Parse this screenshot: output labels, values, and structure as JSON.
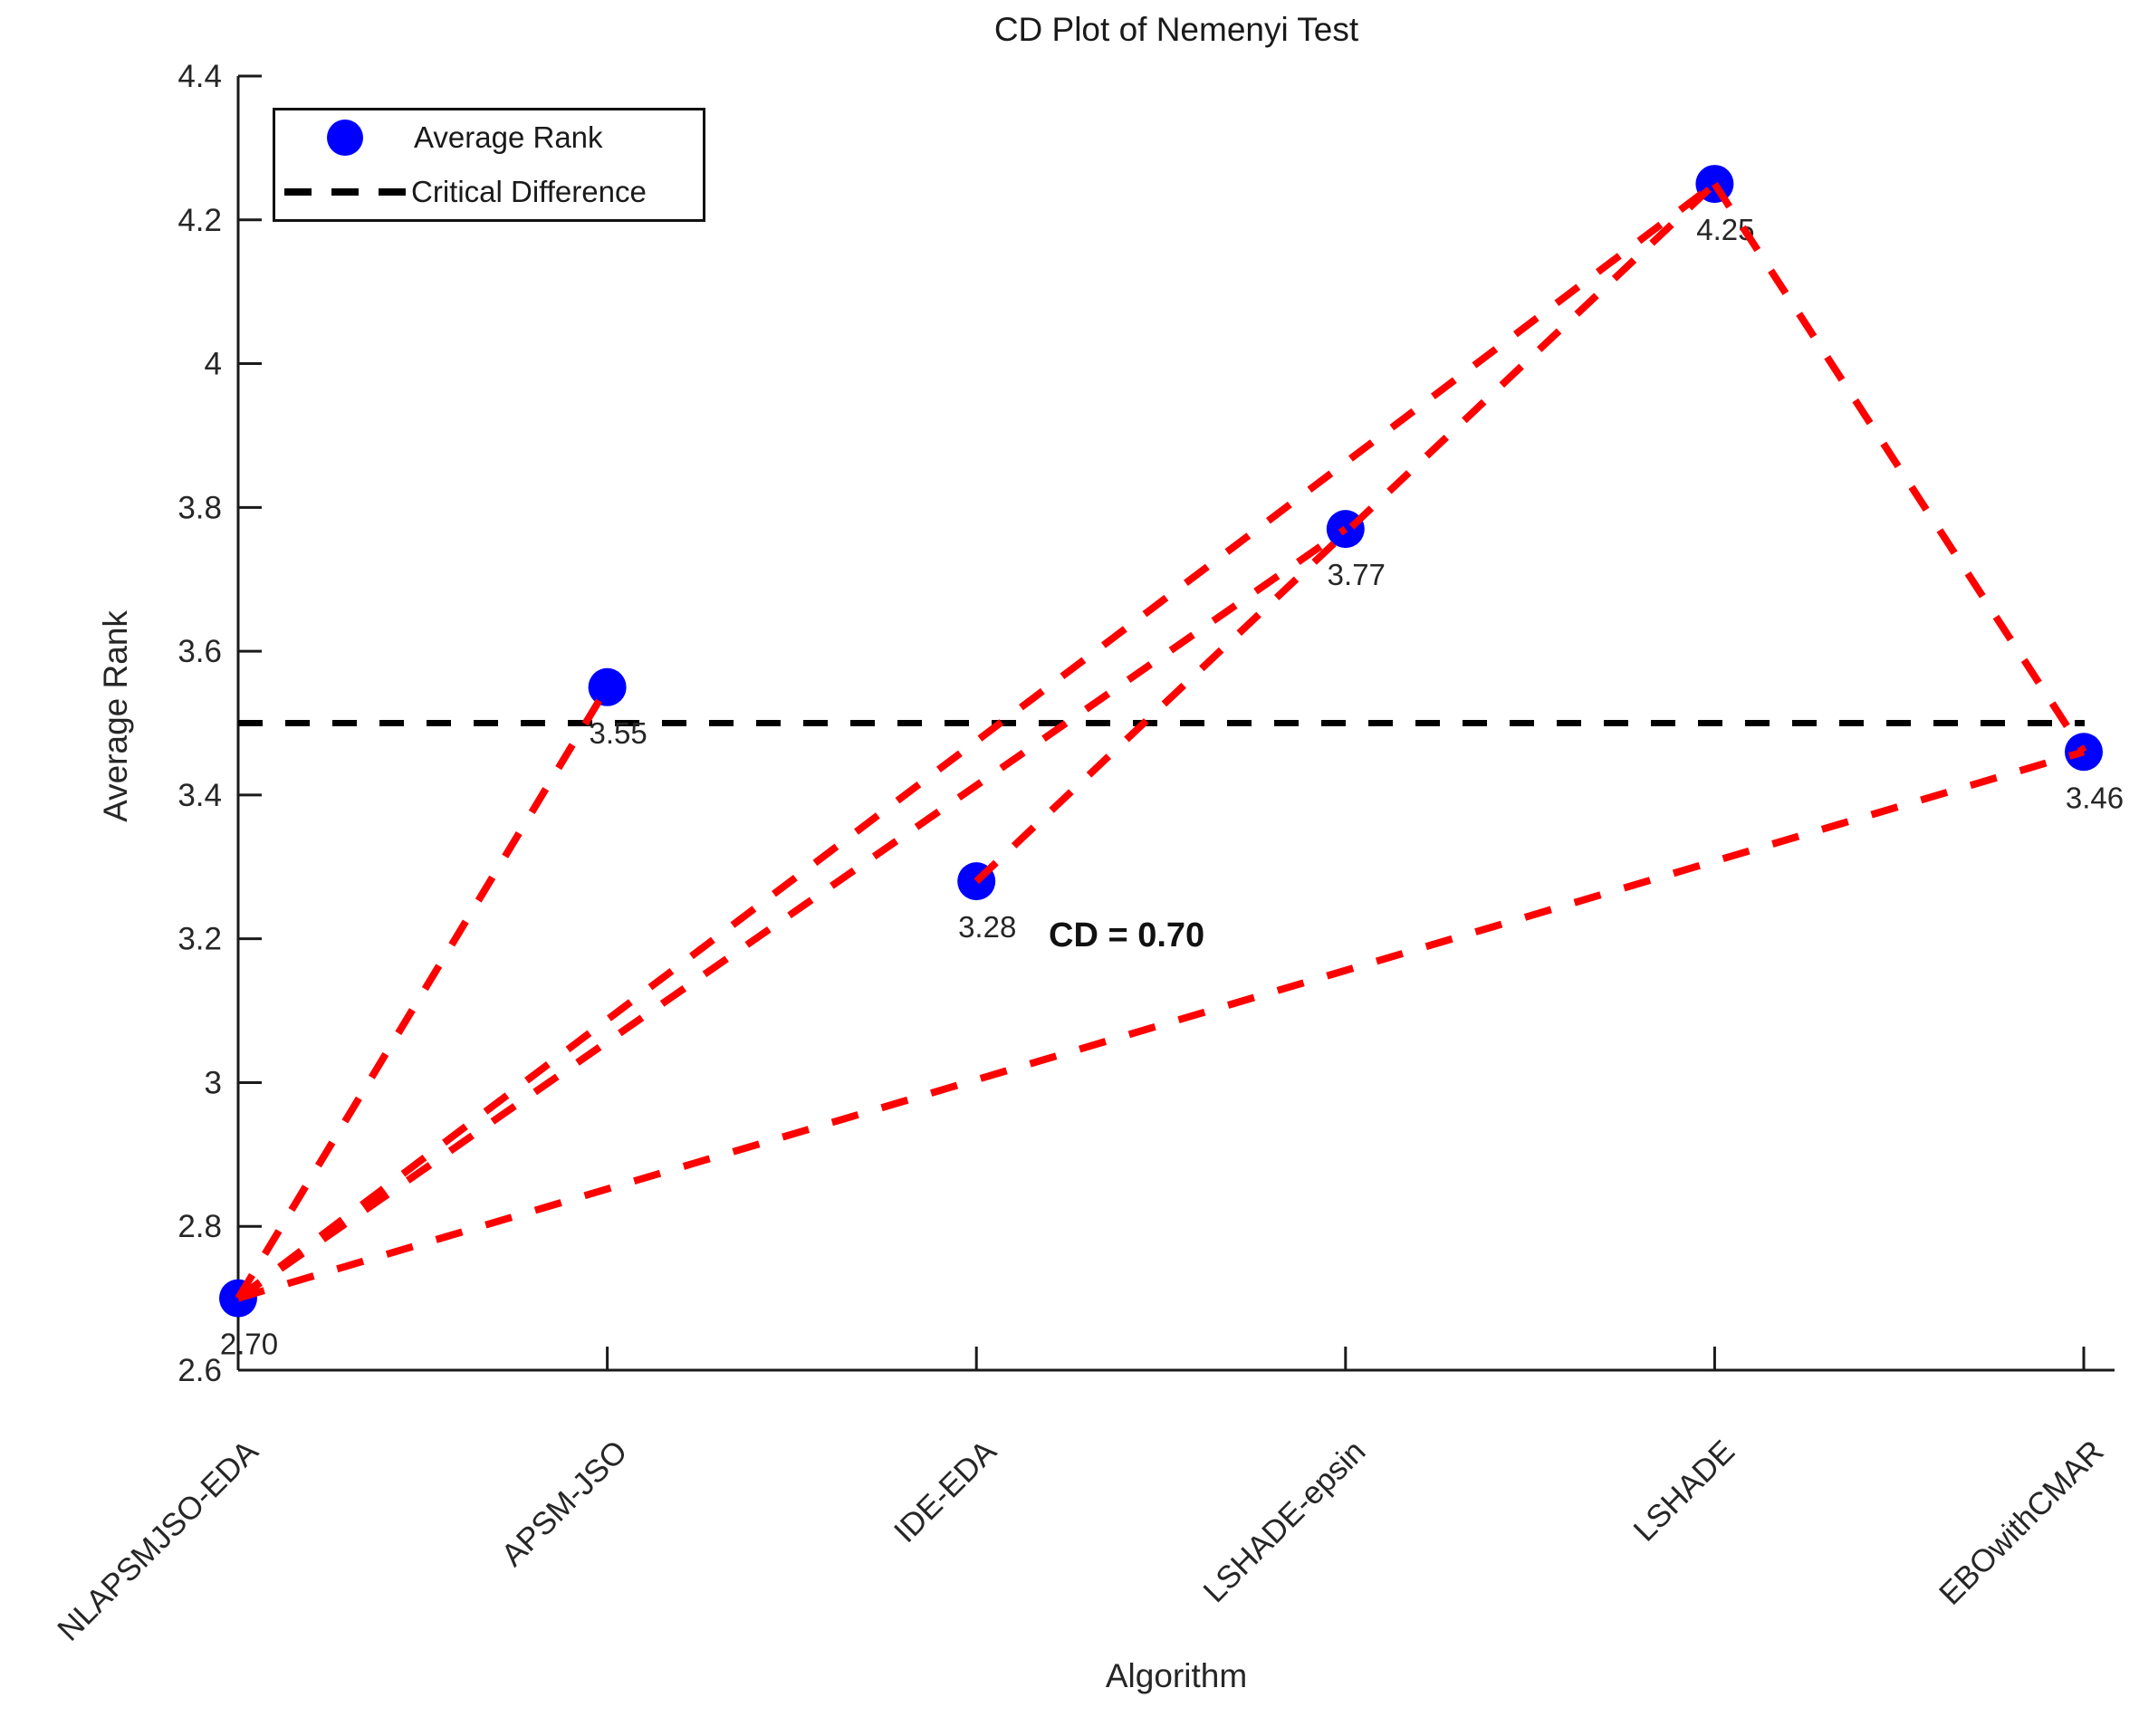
{
  "title": "CD Plot of Nemenyi Test",
  "annotation": "CD = 0.70",
  "legend": {
    "items": [
      {
        "label": "Average Rank",
        "marker": "blue-dot"
      },
      {
        "label": "Critical Difference",
        "marker": "black-dash"
      }
    ]
  },
  "chart_data": {
    "type": "scatter",
    "title": "CD Plot of Nemenyi Test",
    "xlabel": "Algorithm",
    "ylabel": "Average Rank",
    "ylim": [
      2.6,
      4.4
    ],
    "ytick_labels": [
      "2.6",
      "2.8",
      "3",
      "3.2",
      "3.4",
      "3.6",
      "3.8",
      "4",
      "4.2",
      "4.4"
    ],
    "categories": [
      "NLAPSMJSO-EDA",
      "APSM-JSO",
      "IDE-EDA",
      "LSHADE-epsin",
      "LSHADE",
      "EBOwithCMAR"
    ],
    "values": [
      2.7,
      3.55,
      3.28,
      3.77,
      4.25,
      3.46
    ],
    "point_labels": [
      "2.70",
      "3.55",
      "3.28",
      "3.77",
      "4.25",
      "3.46"
    ],
    "critical_difference": 0.7,
    "cd_line_y": 3.5,
    "significant_pairs": [
      [
        0,
        1
      ],
      [
        0,
        3
      ],
      [
        0,
        4
      ],
      [
        0,
        5
      ],
      [
        2,
        4
      ],
      [
        4,
        5
      ]
    ],
    "legend_entries": [
      "Average Rank",
      "Critical Difference"
    ],
    "legend_position": "top-left",
    "grid": false,
    "colors": {
      "marker": "#0000ff",
      "significance_line": "#ff0000",
      "cd_line": "#000000",
      "axis": "#1a1a1a",
      "text": "#262626"
    }
  }
}
